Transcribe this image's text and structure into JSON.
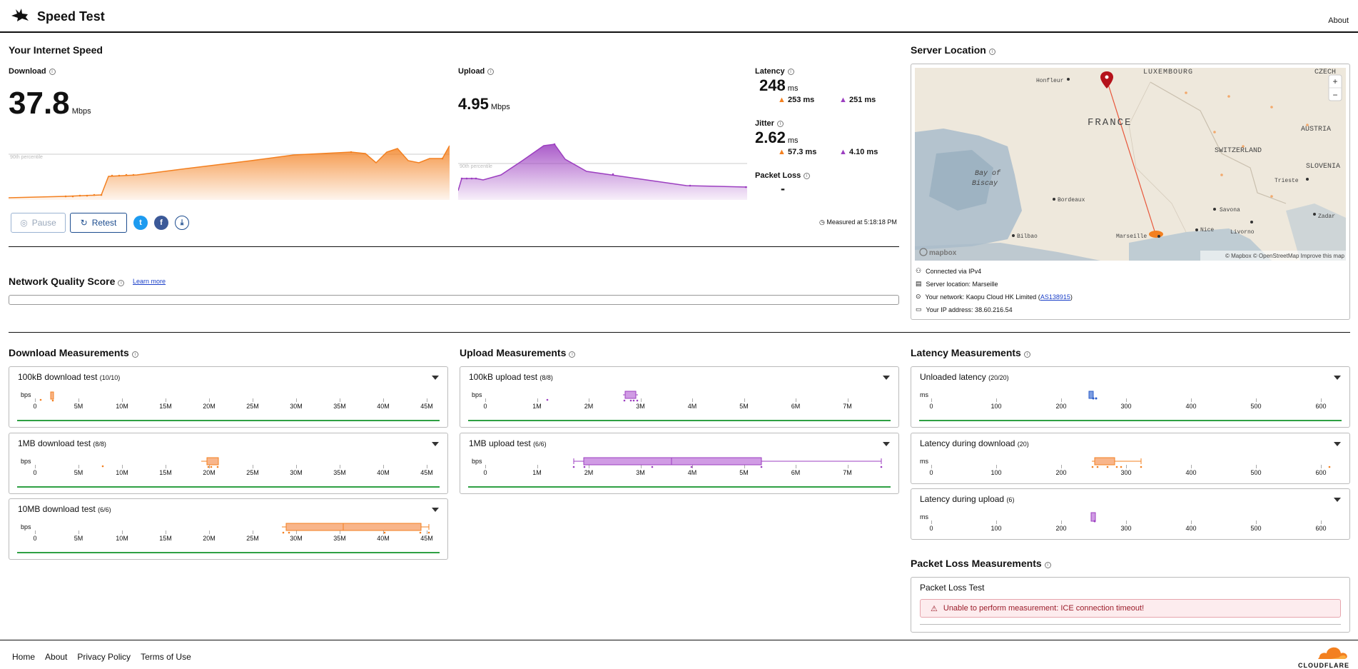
{
  "header": {
    "title": "Speed Test",
    "about": "About"
  },
  "speed": {
    "title": "Your Internet Speed",
    "download": {
      "label": "Download",
      "value": "37.8",
      "unit": "Mbps"
    },
    "upload": {
      "label": "Upload",
      "value": "4.95",
      "unit": "Mbps"
    },
    "percentile_label": "90th percentile",
    "latency": {
      "label": "Latency",
      "value": "248",
      "unit": "ms",
      "down": "253 ms",
      "up": "251 ms"
    },
    "jitter": {
      "label": "Jitter",
      "value": "2.62",
      "unit": "ms",
      "down": "57.3 ms",
      "up": "4.10 ms"
    },
    "packet_loss": {
      "label": "Packet Loss",
      "value": "-"
    },
    "pause_label": "Pause",
    "retest_label": "Retest",
    "measured_at": "Measured at 5:18:18 PM"
  },
  "quality": {
    "title": "Network Quality Score",
    "learn_more": "Learn more"
  },
  "server": {
    "title": "Server Location",
    "map_labels": [
      "LUXEMBOURG",
      "CZECH",
      "Honfleur",
      "FRANCE",
      "AUSTRIA",
      "SWITZERLAND",
      "SLOVENIA",
      "Bay of",
      "Biscay",
      "Trieste",
      "Bordeaux",
      "Savona",
      "Zadar",
      "Nice",
      "Livorno",
      "Bilbao",
      "Marseille"
    ],
    "attribution": "© Mapbox © OpenStreetMap  Improve this map",
    "mapbox": "mapbox",
    "zoom_in": "+",
    "zoom_out": "−",
    "connected": "Connected via IPv4",
    "location": "Server location: Marseille",
    "network_prefix": "Your network: Kaopu Cloud HK Limited (",
    "network_asn": "AS138915",
    "network_suffix": ")",
    "ip": "Your IP address: 38.60.216.54"
  },
  "download_measurements": {
    "title": "Download Measurements",
    "unit": "bps",
    "ticks": [
      "0",
      "5M",
      "10M",
      "15M",
      "20M",
      "25M",
      "30M",
      "35M",
      "40M",
      "45M"
    ],
    "tests": [
      {
        "name": "100kB download test",
        "count": "(10/10)"
      },
      {
        "name": "1MB download test",
        "count": "(8/8)"
      },
      {
        "name": "10MB download test",
        "count": "(6/6)"
      }
    ]
  },
  "upload_measurements": {
    "title": "Upload Measurements",
    "unit": "bps",
    "ticks": [
      "0",
      "1M",
      "2M",
      "3M",
      "4M",
      "5M",
      "6M",
      "7M"
    ],
    "tests": [
      {
        "name": "100kB upload test",
        "count": "(8/8)"
      },
      {
        "name": "1MB upload test",
        "count": "(6/6)"
      }
    ]
  },
  "latency_measurements": {
    "title": "Latency Measurements",
    "unit": "ms",
    "ticks": [
      "0",
      "100",
      "200",
      "300",
      "400",
      "500",
      "600"
    ],
    "tests": [
      {
        "name": "Unloaded latency",
        "count": "(20/20)"
      },
      {
        "name": "Latency during download",
        "count": "(20)"
      },
      {
        "name": "Latency during upload",
        "count": "(6)"
      }
    ]
  },
  "packet_loss_measurements": {
    "title": "Packet Loss Measurements",
    "test_name": "Packet Loss Test",
    "error": "Unable to perform measurement: ICE connection timeout!"
  },
  "footer": {
    "links": [
      "Home",
      "About",
      "Privacy Policy",
      "Terms of Use"
    ],
    "brand": "CLOUDFLARE"
  },
  "colors": {
    "download": "#f38020",
    "upload": "#9c3fc0",
    "latency": "#2a5cc8",
    "green": "#2ea043"
  }
}
